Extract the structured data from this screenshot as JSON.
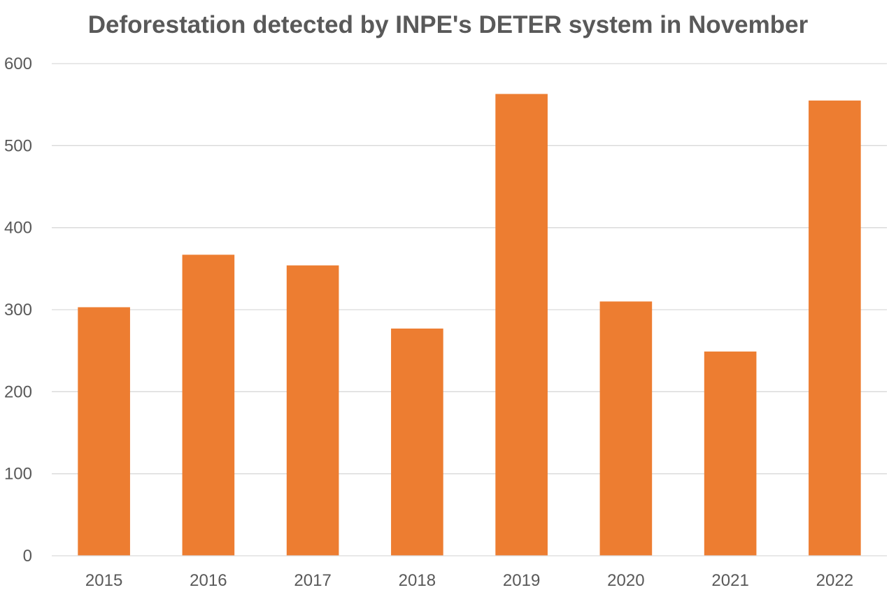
{
  "chart_data": {
    "type": "bar",
    "title": "Deforestation detected by INPE's DETER system in November",
    "xlabel": "",
    "ylabel": "",
    "categories": [
      "2015",
      "2016",
      "2017",
      "2018",
      "2019",
      "2020",
      "2021",
      "2022"
    ],
    "values": [
      303,
      367,
      354,
      277,
      563,
      310,
      249,
      555
    ],
    "ylim": [
      0,
      600
    ],
    "yticks": [
      0,
      100,
      200,
      300,
      400,
      500,
      600
    ],
    "grid": true,
    "legend": "none",
    "bar_color": "#ed7d31"
  }
}
